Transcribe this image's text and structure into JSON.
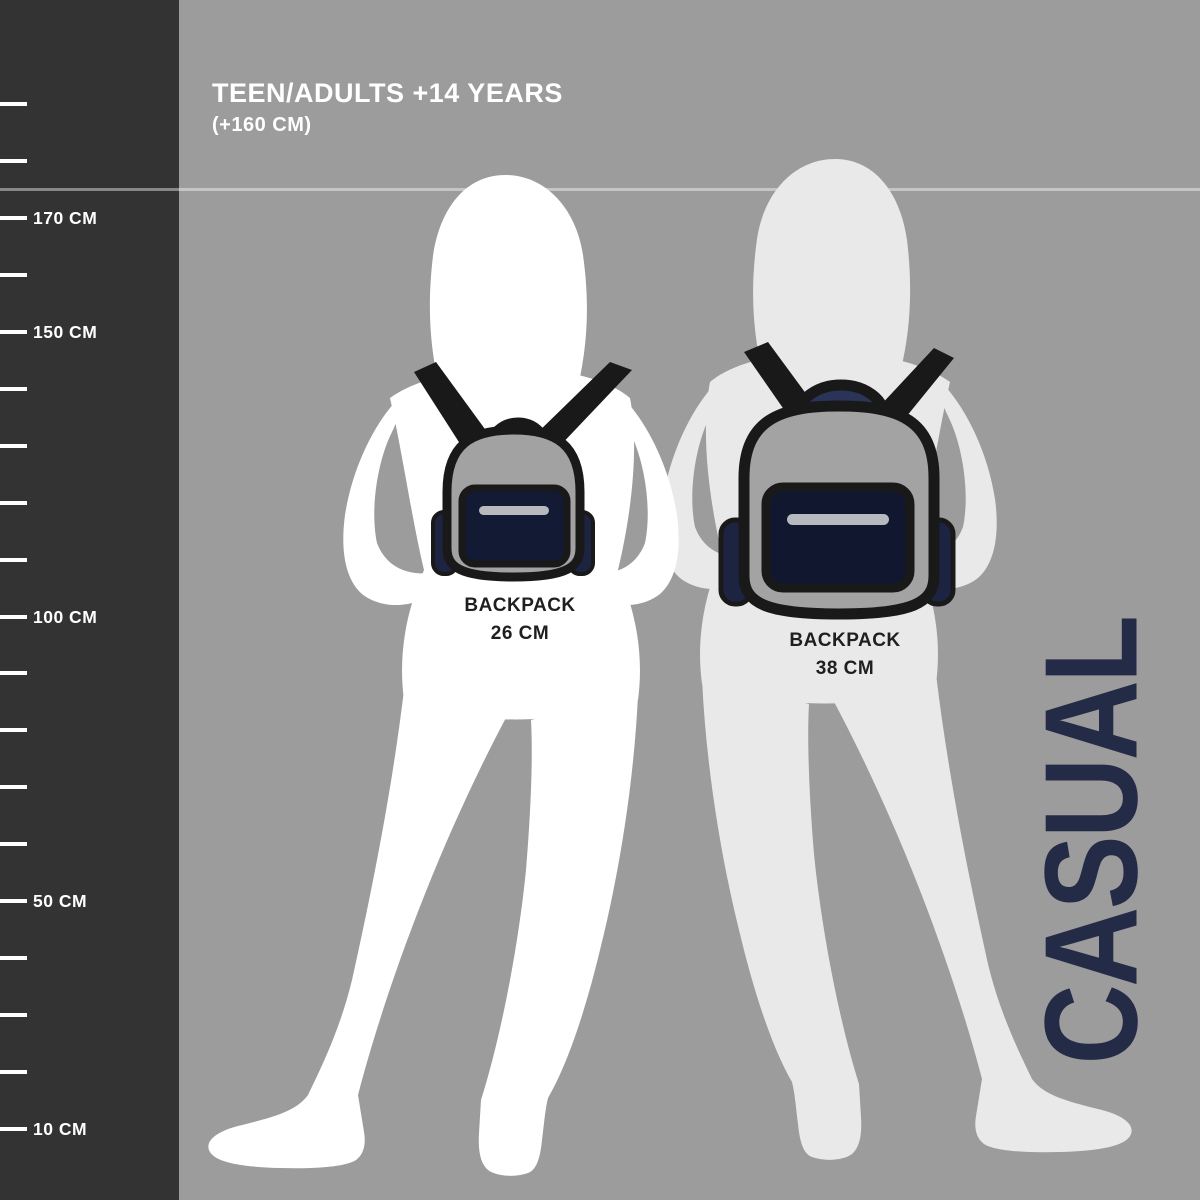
{
  "header": {
    "title": "TEEN/ADULTS +14 YEARS",
    "subtitle": "(+160 CM)"
  },
  "ruler": {
    "unit": "CM",
    "min_cm": 10,
    "max_cm": 190,
    "step_cm": 10,
    "labels": [
      {
        "cm": 170,
        "text": "170 CM"
      },
      {
        "cm": 150,
        "text": "150 CM"
      },
      {
        "cm": 100,
        "text": "100 CM"
      },
      {
        "cm": 50,
        "text": "50 CM"
      },
      {
        "cm": 10,
        "text": "10 CM"
      }
    ]
  },
  "backpacks": [
    {
      "label": "BACKPACK",
      "size": "26 CM",
      "height_cm": 26
    },
    {
      "label": "BACKPACK",
      "size": "38 CM",
      "height_cm": 38
    }
  ],
  "side_label": "CASUAL",
  "figures": [
    {
      "name": "silhouette-front",
      "color": "#ffffff"
    },
    {
      "name": "silhouette-back",
      "color": "#e9e9e9"
    }
  ],
  "colors": {
    "background": "#9c9c9c",
    "panel": "#333333",
    "strap_black": "#191919",
    "backpack_body_gray": "#a2a2a2",
    "pocket_navy": "#131a33",
    "pocket_navy_dark": "#10172e",
    "side_pocket_navy": "#1d2442",
    "handle_navy": "#2a3458",
    "zipper_gray": "#b6b9bd",
    "casual_navy": "#242b47",
    "guide_line": "rgba(255,255,255,0.42)"
  }
}
